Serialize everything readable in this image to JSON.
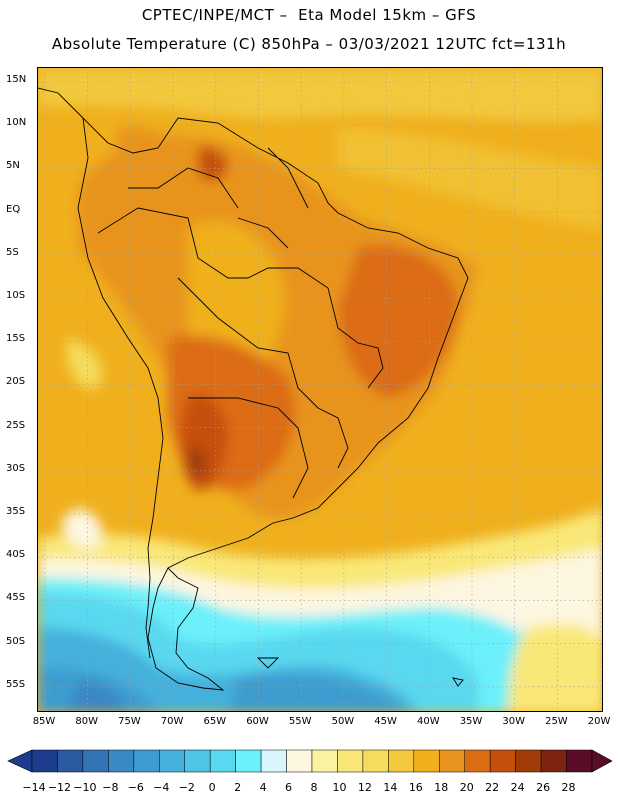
{
  "header": {
    "line1": "CPTEC/INPE/MCT –  Eta Model 15km – GFS",
    "line2": "Absolute Temperature (C) 850hPa – 03/03/2021 12UTC fct=131h"
  },
  "map": {
    "lat_labels": [
      "15N",
      "10N",
      "5N",
      "EQ",
      "5S",
      "10S",
      "15S",
      "20S",
      "25S",
      "30S",
      "35S",
      "40S",
      "45S",
      "50S",
      "55S"
    ],
    "lon_labels": [
      "85W",
      "80W",
      "75W",
      "70W",
      "65W",
      "60W",
      "55W",
      "50W",
      "45W",
      "40W",
      "35W",
      "30W",
      "25W",
      "20W"
    ],
    "background_color": "#f0b01e",
    "coastline_color": "#000000"
  },
  "colorbar": {
    "labels": [
      "-14",
      "-12",
      "-10",
      "-8",
      "-6",
      "-4",
      "-2",
      "0",
      "2",
      "4",
      "6",
      "8",
      "10",
      "12",
      "14",
      "16",
      "18",
      "20",
      "22",
      "24",
      "26",
      "28"
    ],
    "colors": [
      "#1e3c8c",
      "#2b5aa0",
      "#3574b4",
      "#3a88c4",
      "#3d9bd0",
      "#44b0dc",
      "#4ec4e6",
      "#5ad8ef",
      "#6cf0fa",
      "#d8f6fc",
      "#fdf6e0",
      "#faf2a0",
      "#f9e878",
      "#f6dc5c",
      "#f2c83c",
      "#f0b01e",
      "#e8941e",
      "#dc6c14",
      "#c4500c",
      "#a03c08",
      "#7c2410",
      "#5a0c28"
    ]
  }
}
